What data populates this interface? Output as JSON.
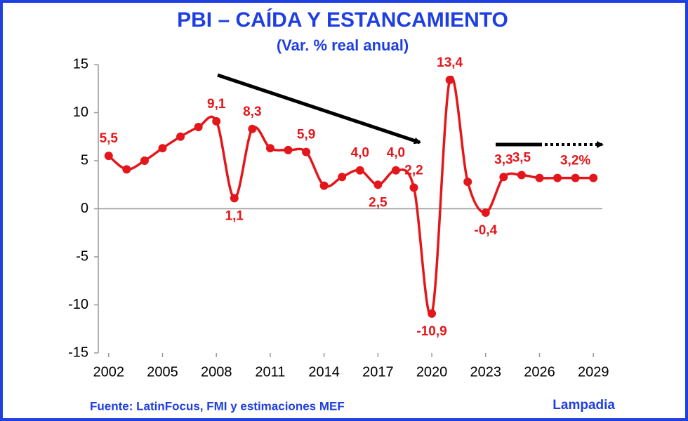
{
  "chart_data": {
    "type": "line",
    "title": "PBI – CAÍDA Y ESTANCAMIENTO",
    "subtitle": "(Var. % real anual)",
    "source": "Fuente: LatinFocus, FMI y estimaciones MEF",
    "brand": "Lampadia",
    "x": [
      2002,
      2003,
      2004,
      2005,
      2006,
      2007,
      2008,
      2009,
      2010,
      2011,
      2012,
      2013,
      2014,
      2015,
      2016,
      2017,
      2018,
      2019,
      2020,
      2021,
      2022,
      2023,
      2024,
      2025,
      2026,
      2027,
      2028,
      2029
    ],
    "series": [
      {
        "name": "PBI",
        "color": "#e3171b",
        "values": [
          5.5,
          4.1,
          5.0,
          6.3,
          7.5,
          8.5,
          9.1,
          1.1,
          8.3,
          6.3,
          6.1,
          5.9,
          2.4,
          3.3,
          4.0,
          2.5,
          4.0,
          2.2,
          -10.9,
          13.4,
          2.8,
          -0.4,
          3.3,
          3.5,
          3.2,
          3.2,
          3.2,
          3.2
        ],
        "value_labels": [
          "5,5",
          null,
          null,
          null,
          null,
          null,
          "9,1",
          "1,1",
          "8,3",
          null,
          null,
          "5,9",
          null,
          null,
          "4,0",
          "2,5",
          "4,0",
          "2,2",
          "-10,9",
          "13,4",
          null,
          "-0,4",
          "3,3",
          "3,5",
          null,
          null,
          "3,2%",
          null
        ]
      }
    ],
    "xlim": [
      2001.5,
      2029.5
    ],
    "xticks": [
      2002,
      2005,
      2008,
      2011,
      2014,
      2017,
      2020,
      2023,
      2026,
      2029
    ],
    "ylim": [
      -15,
      15
    ],
    "yticks": [
      -15,
      -10,
      -5,
      0,
      5,
      10,
      15
    ]
  }
}
